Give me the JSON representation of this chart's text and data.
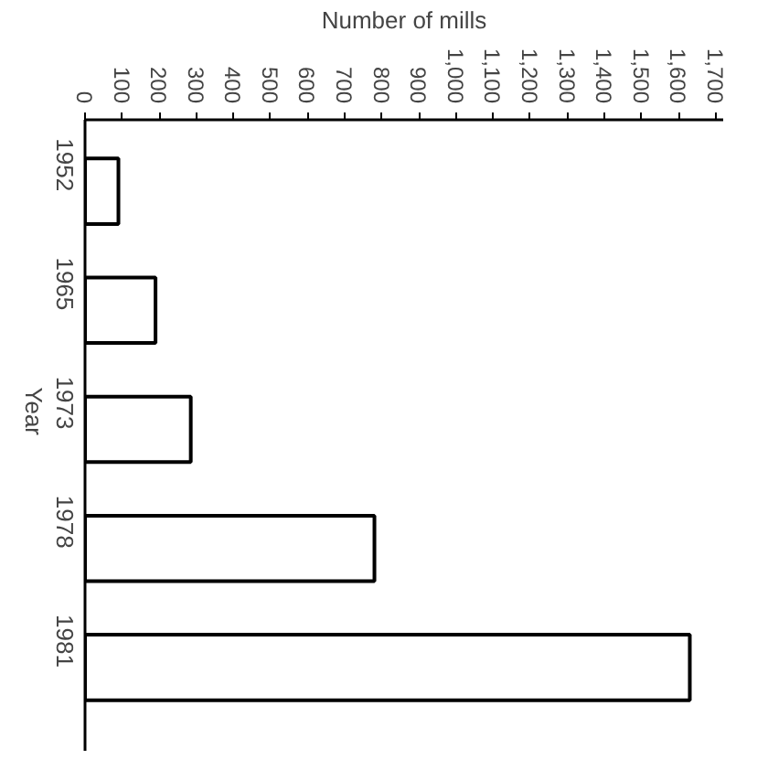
{
  "chart_data": {
    "type": "bar",
    "orientation": "horizontal",
    "xlabel": "Number of mills",
    "ylabel": "Year",
    "categories": [
      "1952",
      "1965",
      "1973",
      "1978",
      "1981"
    ],
    "values": [
      90,
      190,
      285,
      780,
      1630
    ],
    "color": "#ffffff",
    "xlim": [
      0,
      1720
    ],
    "xticks": [
      0,
      100,
      200,
      300,
      400,
      500,
      600,
      700,
      800,
      900,
      {
        "value": 1000,
        "label": "1,000"
      },
      {
        "value": 1100,
        "label": "1,100"
      },
      {
        "value": 1200,
        "label": "1,200"
      },
      {
        "value": 1300,
        "label": "1,300"
      },
      {
        "value": 1400,
        "label": "1,400"
      },
      {
        "value": 1500,
        "label": "1,500"
      },
      {
        "value": 1600,
        "label": "1,600"
      },
      {
        "value": 1700,
        "label": "1,700"
      }
    ],
    "grid": false
  }
}
